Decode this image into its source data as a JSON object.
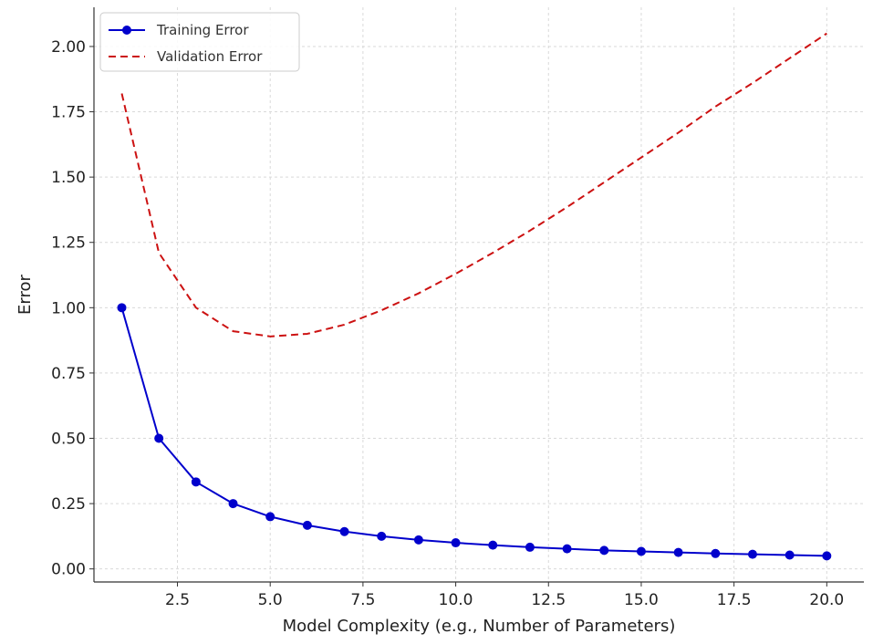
{
  "chart_data": {
    "type": "line",
    "title": "",
    "xlabel": "Model Complexity (e.g., Number of Parameters)",
    "ylabel": "Error",
    "xlim": [
      0.25,
      21.0
    ],
    "ylim": [
      -0.05,
      2.15
    ],
    "x_ticks": [
      2.5,
      5.0,
      7.5,
      10.0,
      12.5,
      15.0,
      17.5,
      20.0
    ],
    "x_tick_labels": [
      "2.5",
      "5.0",
      "7.5",
      "10.0",
      "12.5",
      "15.0",
      "17.5",
      "20.0"
    ],
    "y_ticks": [
      0.0,
      0.25,
      0.5,
      0.75,
      1.0,
      1.25,
      1.5,
      1.75,
      2.0
    ],
    "y_tick_labels": [
      "0.00",
      "0.25",
      "0.50",
      "0.75",
      "1.00",
      "1.25",
      "1.50",
      "1.75",
      "2.00"
    ],
    "grid": true,
    "legend_position": "top-left",
    "x": [
      1,
      2,
      3,
      4,
      5,
      6,
      7,
      8,
      9,
      10,
      11,
      12,
      13,
      14,
      15,
      16,
      17,
      18,
      19,
      20
    ],
    "series": [
      {
        "name": "Training Error",
        "color": "#0000cc",
        "line_style": "solid",
        "marker": "circle",
        "values": [
          1.0,
          0.5,
          0.333,
          0.25,
          0.2,
          0.167,
          0.143,
          0.125,
          0.111,
          0.1,
          0.091,
          0.083,
          0.077,
          0.071,
          0.067,
          0.063,
          0.059,
          0.056,
          0.053,
          0.05
        ]
      },
      {
        "name": "Validation Error",
        "color": "#cc1111",
        "line_style": "dashed",
        "marker": "none",
        "values": [
          1.82,
          1.21,
          1.0,
          0.91,
          0.89,
          0.9,
          0.935,
          0.99,
          1.055,
          1.13,
          1.21,
          1.295,
          1.385,
          1.48,
          1.575,
          1.67,
          1.77,
          1.86,
          1.955,
          2.05
        ]
      }
    ]
  }
}
